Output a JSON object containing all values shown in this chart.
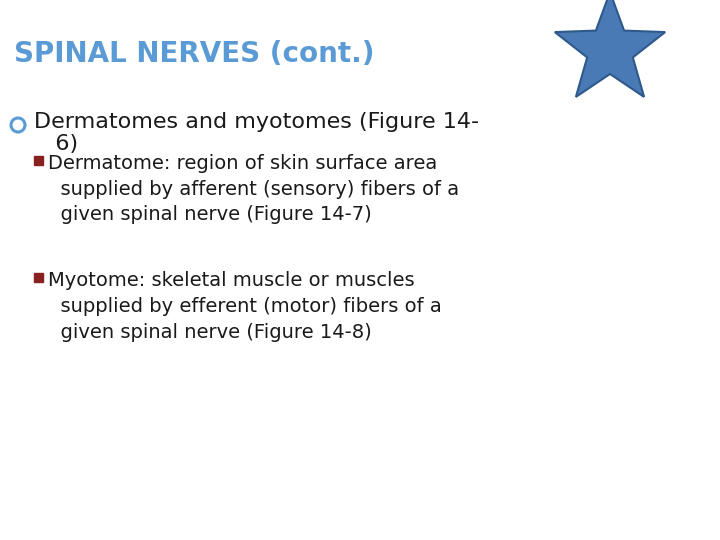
{
  "background_color": "#ffffff",
  "title": "SPINAL NERVES (cont.)",
  "title_color": "#5b9bd5",
  "title_fontsize": 20,
  "star_color": "#4a7ab5",
  "star_edge_color": "#2d5a8a",
  "bullet1_color": "#5b9bd5",
  "bullet1_text_line1": "Dermatomes and myotomes (Figure 14-",
  "bullet1_text_line2": "   6)",
  "bullet1_fontsize": 16,
  "sub_bullet_color": "#8b2020",
  "sub_bullet_fontsize": 14,
  "sub_bullets": [
    "Dermatome: region of skin surface area\n  supplied by afferent (sensory) fibers of a\n  given spinal nerve (Figure 14-7)",
    "Myotome: skeletal muscle or muscles\n  supplied by efferent (motor) fibers of a\n  given spinal nerve (Figure 14-8)"
  ],
  "text_color": "#1a1a1a"
}
